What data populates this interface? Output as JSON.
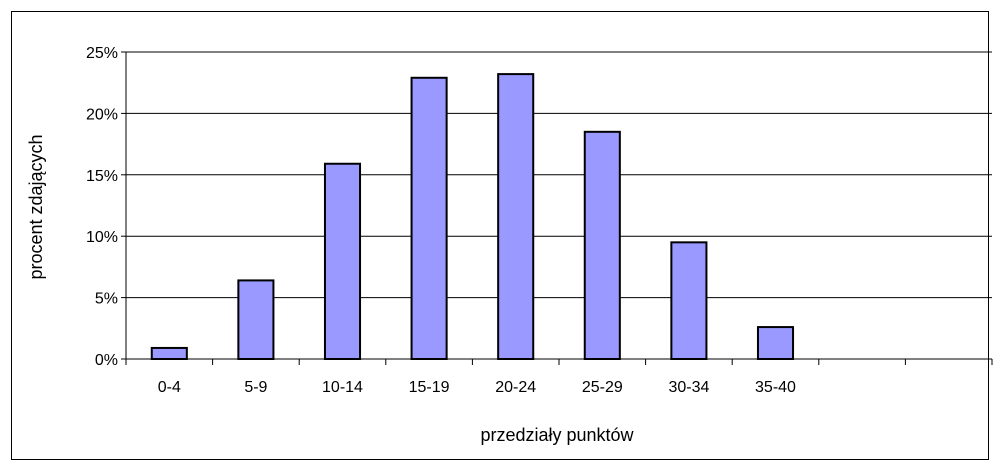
{
  "chart_data": {
    "type": "bar",
    "title": "",
    "xlabel": "przedziały punktów",
    "ylabel": "procent zdających",
    "categories": [
      "0-4",
      "5-9",
      "10-14",
      "15-19",
      "20-24",
      "25-29",
      "30-34",
      "35-40",
      "",
      ""
    ],
    "values": [
      0.9,
      6.4,
      15.9,
      22.9,
      23.2,
      18.5,
      9.5,
      2.6,
      null,
      null
    ],
    "ylim": [
      0,
      25
    ],
    "yticks": [
      "0%",
      "5%",
      "10%",
      "15%",
      "20%",
      "25%"
    ],
    "grid": true,
    "legend": "none",
    "colors": {
      "bar_fill": "#9999ff",
      "bar_stroke": "#000000",
      "gridline": "#000000"
    }
  }
}
